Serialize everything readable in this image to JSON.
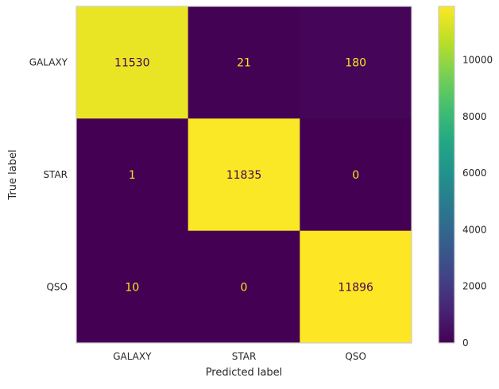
{
  "chart_data": {
    "type": "heatmap",
    "title": "",
    "xlabel": "Predicted label",
    "ylabel": "True label",
    "x_categories": [
      "GALAXY",
      "STAR",
      "QSO"
    ],
    "y_categories": [
      "GALAXY",
      "STAR",
      "QSO"
    ],
    "matrix": [
      [
        11530,
        21,
        180
      ],
      [
        1,
        11835,
        0
      ],
      [
        10,
        0,
        11896
      ]
    ],
    "colormap": "viridis",
    "color_range": [
      0,
      11896
    ],
    "colorbar_ticks": [
      0,
      2000,
      4000,
      6000,
      8000,
      10000
    ],
    "colorbar_tick_labels": [
      "0",
      "2000",
      "4000",
      "6000",
      "8000",
      "10000"
    ],
    "grid": false,
    "colors": {
      "axes_border": "#cccccc",
      "tick_text": "#262626",
      "cell_text_on_dark": "#f8e621",
      "cell_text_on_light": "#440154"
    }
  }
}
